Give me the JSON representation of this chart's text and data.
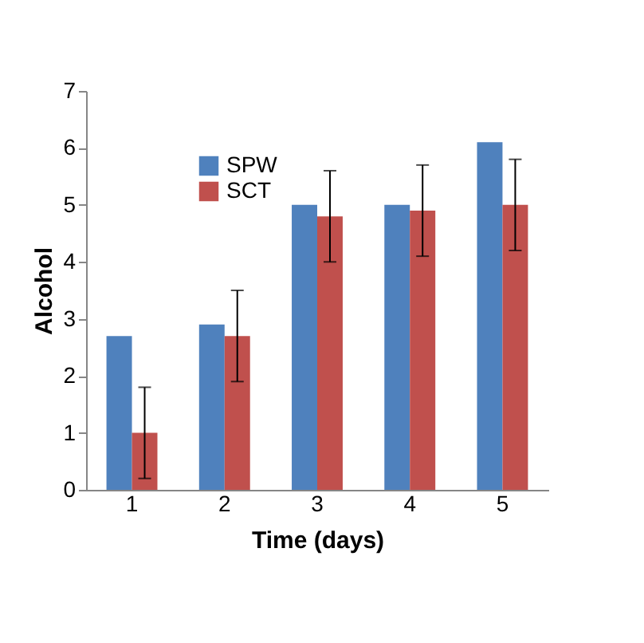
{
  "chart_data": {
    "type": "bar",
    "xlabel": "Time (days)",
    "ylabel": "Alcohol",
    "categories": [
      "1",
      "2",
      "3",
      "4",
      "5"
    ],
    "series": [
      {
        "name": "SPW",
        "color": "#4f81bd",
        "values": [
          2.7,
          2.9,
          5.0,
          5.0,
          6.1
        ]
      },
      {
        "name": "SCT",
        "color": "#c0504d",
        "values": [
          1.0,
          2.7,
          4.8,
          4.9,
          5.0
        ],
        "errors": [
          0.8,
          0.8,
          0.8,
          0.8,
          0.8
        ]
      }
    ],
    "ylim": [
      0,
      7
    ],
    "yticks": [
      0,
      1,
      2,
      3,
      4,
      5,
      6,
      7
    ],
    "grid": false,
    "legend": "top left"
  }
}
